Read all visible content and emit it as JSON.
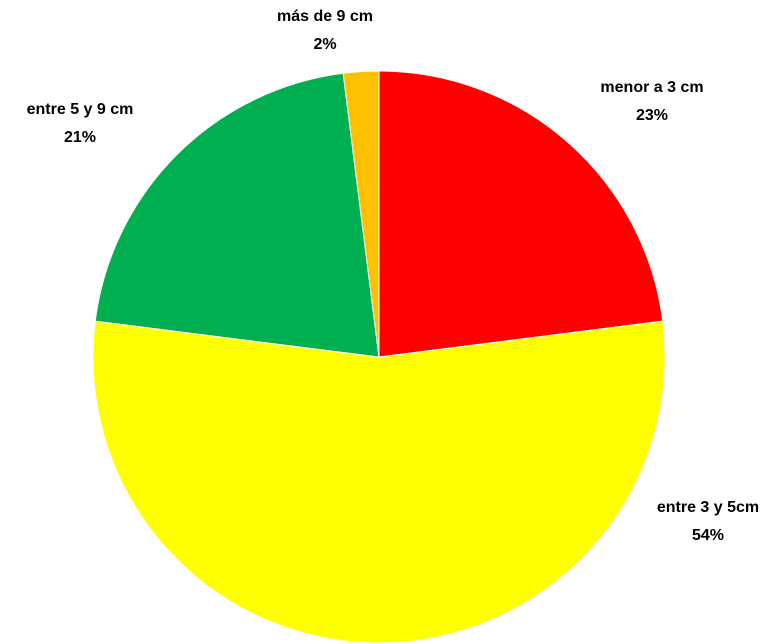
{
  "chart_data": {
    "type": "pie",
    "categories": [
      "menor a 3 cm",
      "entre 3 y 5cm",
      "entre 5 y 9 cm",
      "más de 9 cm"
    ],
    "values": [
      23,
      54,
      21,
      2
    ],
    "value_labels": [
      "23%",
      "54%",
      "21%",
      "2%"
    ],
    "colors": [
      "#ff0000",
      "#ffff00",
      "#00b050",
      "#ffc000"
    ]
  }
}
